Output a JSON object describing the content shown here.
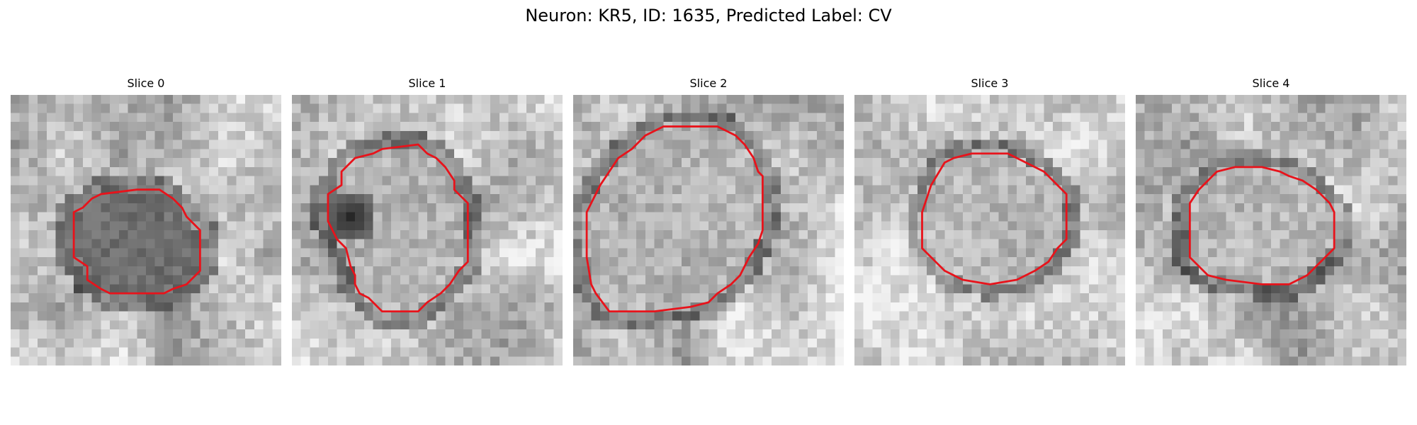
{
  "figure": {
    "title": "Neuron: KR5, ID: 1635, Predicted Label: CV"
  },
  "colors": {
    "contour": "#e8131b",
    "background": "#ffffff"
  },
  "slices": [
    {
      "label": "Slice 0",
      "contour_points": [
        [
          14,
          10.5
        ],
        [
          16.5,
          10.5
        ],
        [
          18,
          11.5
        ],
        [
          19,
          12.5
        ],
        [
          19.5,
          13.5
        ],
        [
          21,
          15
        ],
        [
          21,
          19.5
        ],
        [
          19.5,
          21
        ],
        [
          18,
          21.5
        ],
        [
          17,
          22
        ],
        [
          11,
          22
        ],
        [
          10,
          21.5
        ],
        [
          8.5,
          20.5
        ],
        [
          8.5,
          19
        ],
        [
          7,
          18
        ],
        [
          7,
          13
        ],
        [
          8,
          12.5
        ],
        [
          9,
          11.5
        ],
        [
          10,
          11
        ]
      ]
    },
    {
      "label": "Slice 1",
      "contour_points": [
        [
          10,
          6
        ],
        [
          14,
          5.5
        ],
        [
          15,
          6.5
        ],
        [
          16,
          7
        ],
        [
          17,
          8
        ],
        [
          18,
          9.5
        ],
        [
          18,
          10.5
        ],
        [
          19,
          11.5
        ],
        [
          19.5,
          12
        ],
        [
          19.5,
          18.5
        ],
        [
          18.5,
          19.5
        ],
        [
          17.5,
          21
        ],
        [
          16.5,
          22
        ],
        [
          15,
          23
        ],
        [
          14,
          24
        ],
        [
          10,
          24
        ],
        [
          9,
          23
        ],
        [
          8.5,
          22.5
        ],
        [
          7.5,
          22
        ],
        [
          7,
          21
        ],
        [
          7,
          20
        ],
        [
          6.5,
          19
        ],
        [
          6,
          17
        ],
        [
          5,
          16
        ],
        [
          4,
          14
        ],
        [
          4,
          11
        ],
        [
          5.5,
          10
        ],
        [
          5.5,
          8.5
        ],
        [
          7,
          7
        ],
        [
          9,
          6.5
        ]
      ]
    },
    {
      "label": "Slice 2",
      "contour_points": [
        [
          8,
          4.5
        ],
        [
          10,
          3.5
        ],
        [
          16,
          3.5
        ],
        [
          17,
          4
        ],
        [
          18,
          4.5
        ],
        [
          19,
          5.5
        ],
        [
          20,
          7
        ],
        [
          20.5,
          8.5
        ],
        [
          21,
          9
        ],
        [
          21,
          15
        ],
        [
          20.5,
          16.5
        ],
        [
          19.5,
          18
        ],
        [
          18.5,
          20
        ],
        [
          17.5,
          21
        ],
        [
          16,
          22
        ],
        [
          15,
          23
        ],
        [
          13,
          23.5
        ],
        [
          9,
          24
        ],
        [
          4,
          24
        ],
        [
          2.5,
          22
        ],
        [
          2,
          21
        ],
        [
          1.5,
          18
        ],
        [
          1.5,
          13
        ],
        [
          3,
          10
        ],
        [
          4,
          8.5
        ],
        [
          5,
          7
        ],
        [
          6.5,
          6
        ]
      ]
    },
    {
      "label": "Slice 3",
      "contour_points": [
        [
          10,
          7.5
        ],
        [
          11,
          7
        ],
        [
          13,
          6.5
        ],
        [
          17,
          6.5
        ],
        [
          18,
          7
        ],
        [
          19,
          7.5
        ],
        [
          21,
          8.5
        ],
        [
          22,
          9.5
        ],
        [
          23,
          10.5
        ],
        [
          23.5,
          11
        ],
        [
          23.5,
          16
        ],
        [
          22.5,
          17
        ],
        [
          21.5,
          18.5
        ],
        [
          20,
          19.5
        ],
        [
          18,
          20.5
        ],
        [
          15,
          21
        ],
        [
          12,
          20.5
        ],
        [
          10,
          19.5
        ],
        [
          9,
          18.5
        ],
        [
          8,
          17.5
        ],
        [
          7.5,
          17
        ],
        [
          7.5,
          13
        ],
        [
          8,
          11.5
        ],
        [
          8.5,
          10
        ]
      ]
    },
    {
      "label": "Slice 4",
      "contour_points": [
        [
          9,
          8.5
        ],
        [
          11,
          8
        ],
        [
          14,
          8
        ],
        [
          16,
          8.5
        ],
        [
          17,
          9
        ],
        [
          18.5,
          9.5
        ],
        [
          20,
          10.5
        ],
        [
          20.5,
          11
        ],
        [
          21.5,
          12
        ],
        [
          22,
          13
        ],
        [
          22,
          17
        ],
        [
          21,
          18
        ],
        [
          20,
          19
        ],
        [
          19,
          20
        ],
        [
          17,
          21
        ],
        [
          14,
          21
        ],
        [
          10,
          20.5
        ],
        [
          8,
          20
        ],
        [
          7,
          19
        ],
        [
          6,
          18
        ],
        [
          6,
          12
        ],
        [
          7,
          10.5
        ],
        [
          8,
          9.5
        ]
      ]
    }
  ]
}
